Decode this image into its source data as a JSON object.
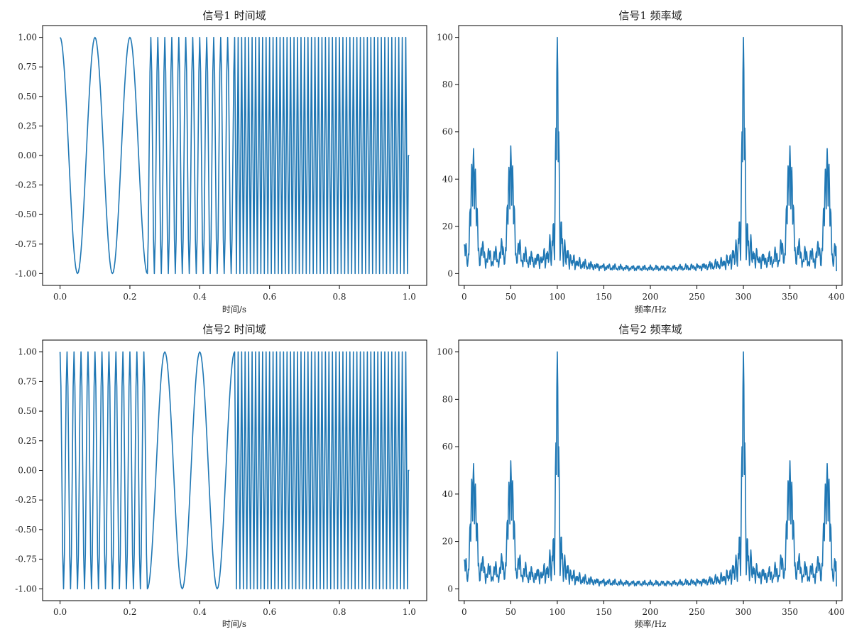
{
  "figure": {
    "line_color": "#1f77b4"
  },
  "chart_data": [
    {
      "type": "line",
      "id": "sig1-time",
      "title": "信号1 时间域",
      "xlabel": "时间/s",
      "ylabel": "",
      "xlim": [
        -0.05,
        1.05
      ],
      "ylim": [
        -1.1,
        1.1
      ],
      "xticks": [
        0.0,
        0.2,
        0.4,
        0.6,
        0.8,
        1.0
      ],
      "xtick_labels": [
        "0.0",
        "0.2",
        "0.4",
        "0.6",
        "0.8",
        "1.0"
      ],
      "yticks": [
        -1.0,
        -0.75,
        -0.5,
        -0.25,
        0.0,
        0.25,
        0.5,
        0.75,
        1.0
      ],
      "ytick_labels": [
        "-1.00",
        "-0.75",
        "-0.50",
        "-0.25",
        "0.00",
        "0.25",
        "0.50",
        "0.75",
        "1.00"
      ],
      "grid": false,
      "series": [
        {
          "signal": "cos(2π·f·t), piecewise frequency",
          "sample_rate_hz": 400,
          "t_range": [
            0,
            1
          ],
          "segments": [
            {
              "t_start": 0.0,
              "t_end": 0.25,
              "freq_hz": 10
            },
            {
              "t_start": 0.25,
              "t_end": 0.5,
              "freq_hz": 50
            },
            {
              "t_start": 0.5,
              "t_end": 1.0,
              "freq_hz": 100
            }
          ]
        }
      ]
    },
    {
      "type": "line",
      "id": "sig1-freq",
      "title": "信号1 频率域",
      "xlabel": "频率/Hz",
      "ylabel": "",
      "xlim": [
        -6,
        406
      ],
      "ylim": [
        -5,
        105
      ],
      "xticks": [
        0,
        50,
        100,
        150,
        200,
        250,
        300,
        350,
        400
      ],
      "xtick_labels": [
        "0",
        "50",
        "100",
        "150",
        "200",
        "250",
        "300",
        "350",
        "400"
      ],
      "yticks": [
        0,
        20,
        40,
        60,
        80,
        100
      ],
      "ytick_labels": [
        "0",
        "20",
        "40",
        "60",
        "80",
        "100"
      ],
      "grid": false,
      "series": [
        {
          "signal": "|FFT| magnitude of 信号1",
          "freq_range_hz": [
            0,
            400
          ],
          "peaks": [
            {
              "freq_hz": 10,
              "magnitude": 50
            },
            {
              "freq_hz": 50,
              "magnitude": 50
            },
            {
              "freq_hz": 100,
              "magnitude": 100
            },
            {
              "freq_hz": 300,
              "magnitude": 100
            },
            {
              "freq_hz": 350,
              "magnitude": 50
            },
            {
              "freq_hz": 390,
              "magnitude": 50
            }
          ]
        }
      ]
    },
    {
      "type": "line",
      "id": "sig2-time",
      "title": "信号2 时间域",
      "xlabel": "时间/s",
      "ylabel": "",
      "xlim": [
        -0.05,
        1.05
      ],
      "ylim": [
        -1.1,
        1.1
      ],
      "xticks": [
        0.0,
        0.2,
        0.4,
        0.6,
        0.8,
        1.0
      ],
      "xtick_labels": [
        "0.0",
        "0.2",
        "0.4",
        "0.6",
        "0.8",
        "1.0"
      ],
      "yticks": [
        -1.0,
        -0.75,
        -0.5,
        -0.25,
        0.0,
        0.25,
        0.5,
        0.75,
        1.0
      ],
      "ytick_labels": [
        "-1.00",
        "-0.75",
        "-0.50",
        "-0.25",
        "0.00",
        "0.25",
        "0.50",
        "0.75",
        "1.00"
      ],
      "grid": false,
      "series": [
        {
          "signal": "cos(2π·f·t), piecewise frequency",
          "sample_rate_hz": 400,
          "t_range": [
            0,
            1
          ],
          "segments": [
            {
              "t_start": 0.0,
              "t_end": 0.25,
              "freq_hz": 50
            },
            {
              "t_start": 0.25,
              "t_end": 0.5,
              "freq_hz": 10
            },
            {
              "t_start": 0.5,
              "t_end": 1.0,
              "freq_hz": 100
            }
          ]
        }
      ]
    },
    {
      "type": "line",
      "id": "sig2-freq",
      "title": "信号2 频率域",
      "xlabel": "频率/Hz",
      "ylabel": "",
      "xlim": [
        -6,
        406
      ],
      "ylim": [
        -5,
        105
      ],
      "xticks": [
        0,
        50,
        100,
        150,
        200,
        250,
        300,
        350,
        400
      ],
      "xtick_labels": [
        "0",
        "50",
        "100",
        "150",
        "200",
        "250",
        "300",
        "350",
        "400"
      ],
      "yticks": [
        0,
        20,
        40,
        60,
        80,
        100
      ],
      "ytick_labels": [
        "0",
        "20",
        "40",
        "60",
        "80",
        "100"
      ],
      "grid": false,
      "series": [
        {
          "signal": "|FFT| magnitude of 信号2",
          "freq_range_hz": [
            0,
            400
          ],
          "peaks": [
            {
              "freq_hz": 10,
              "magnitude": 50
            },
            {
              "freq_hz": 50,
              "magnitude": 50
            },
            {
              "freq_hz": 100,
              "magnitude": 100
            },
            {
              "freq_hz": 300,
              "magnitude": 100
            },
            {
              "freq_hz": 350,
              "magnitude": 50
            },
            {
              "freq_hz": 390,
              "magnitude": 50
            }
          ]
        }
      ]
    }
  ]
}
